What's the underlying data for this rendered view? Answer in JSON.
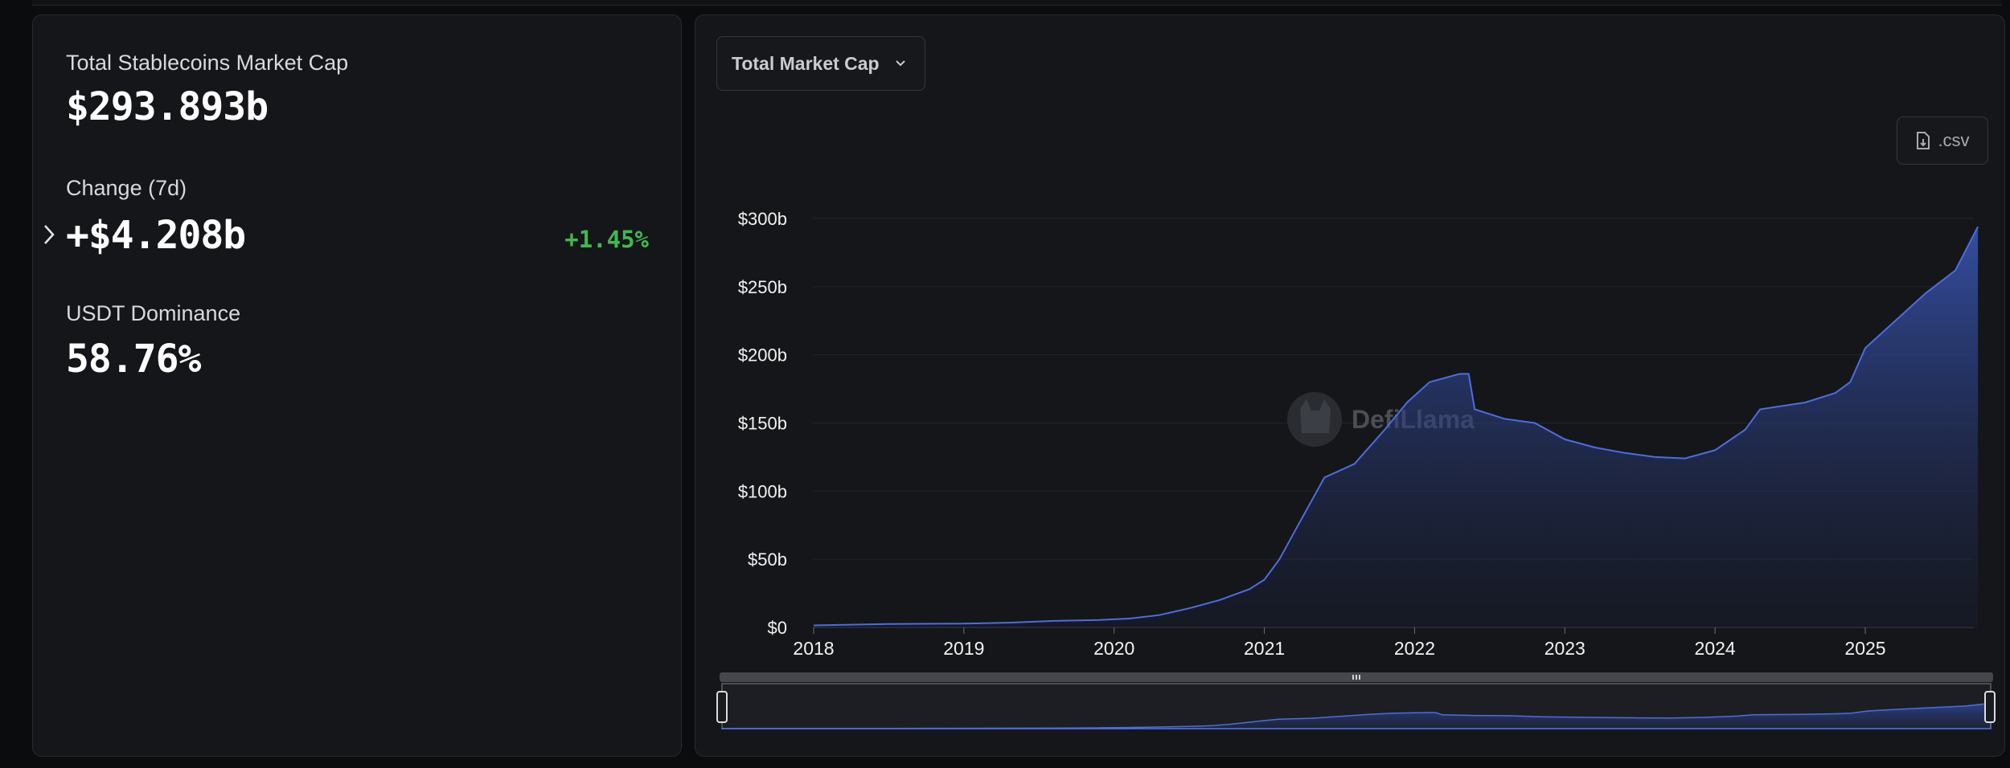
{
  "stats": {
    "market_cap_label": "Total Stablecoins Market Cap",
    "market_cap_value": "$293.893b",
    "change_label": "Change (7d)",
    "change_value": "+$4.208b",
    "change_pct": "+1.45%",
    "dominance_label": "USDT Dominance",
    "dominance_value": "58.76%"
  },
  "controls": {
    "dropdown_label": "Total Market Cap",
    "csv_label": ".csv"
  },
  "watermark": "DefiLlama",
  "colors": {
    "line": "#4a6de5",
    "positive": "#3fb950"
  },
  "chart_data": {
    "type": "area",
    "title": "",
    "xlabel": "",
    "ylabel": "",
    "x_ticks": [
      "2018",
      "2019",
      "2020",
      "2021",
      "2022",
      "2023",
      "2024",
      "2025"
    ],
    "y_ticks": [
      "$0",
      "$50b",
      "$100b",
      "$150b",
      "$200b",
      "$250b",
      "$300b"
    ],
    "ylim": [
      0,
      300
    ],
    "xlim": [
      2018.0,
      2025.75
    ],
    "grid": true,
    "series": [
      {
        "values_unit": "USD billions",
        "points": [
          [
            2018.0,
            1.5
          ],
          [
            2018.5,
            2.5
          ],
          [
            2019.0,
            2.8
          ],
          [
            2019.3,
            3.5
          ],
          [
            2019.6,
            4.8
          ],
          [
            2019.9,
            5.5
          ],
          [
            2020.1,
            6.5
          ],
          [
            2020.3,
            9
          ],
          [
            2020.5,
            14
          ],
          [
            2020.7,
            20
          ],
          [
            2020.9,
            28
          ],
          [
            2021.0,
            35
          ],
          [
            2021.1,
            50
          ],
          [
            2021.2,
            70
          ],
          [
            2021.3,
            90
          ],
          [
            2021.4,
            110
          ],
          [
            2021.6,
            120
          ],
          [
            2021.8,
            145
          ],
          [
            2021.95,
            165
          ],
          [
            2022.1,
            180
          ],
          [
            2022.3,
            186
          ],
          [
            2022.36,
            186
          ],
          [
            2022.4,
            160
          ],
          [
            2022.6,
            153
          ],
          [
            2022.8,
            150
          ],
          [
            2023.0,
            138
          ],
          [
            2023.2,
            132
          ],
          [
            2023.4,
            128
          ],
          [
            2023.6,
            125
          ],
          [
            2023.8,
            124
          ],
          [
            2024.0,
            130
          ],
          [
            2024.2,
            145
          ],
          [
            2024.3,
            160
          ],
          [
            2024.6,
            165
          ],
          [
            2024.8,
            172
          ],
          [
            2024.9,
            180
          ],
          [
            2025.0,
            205
          ],
          [
            2025.2,
            225
          ],
          [
            2025.4,
            245
          ],
          [
            2025.6,
            262
          ],
          [
            2025.75,
            294
          ]
        ]
      }
    ]
  }
}
